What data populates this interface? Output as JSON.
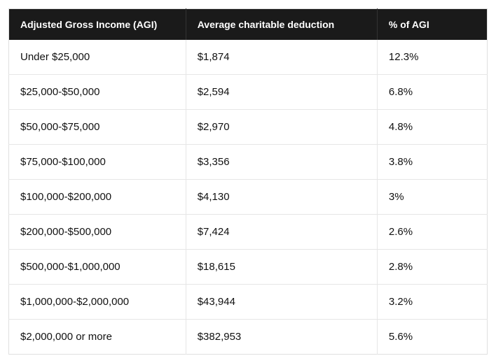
{
  "table": {
    "type": "table",
    "header_bg": "#1a1a1a",
    "header_text_color": "#ffffff",
    "header_fontsize": 14,
    "header_fontweight": 700,
    "body_fontsize": 15,
    "body_text_color": "#111111",
    "border_color": "#e6e6e6",
    "background_color": "#ffffff",
    "columns": [
      {
        "label": "Adjusted Gross Income (AGI)",
        "width": "37%",
        "align": "left"
      },
      {
        "label": "Average charitable deduction",
        "width": "40%",
        "align": "left"
      },
      {
        "label": "% of AGI",
        "width": "23%",
        "align": "left"
      }
    ],
    "rows": [
      [
        "Under $25,000",
        "$1,874",
        "12.3%"
      ],
      [
        "$25,000-$50,000",
        "$2,594",
        "6.8%"
      ],
      [
        "$50,000-$75,000",
        "$2,970",
        "4.8%"
      ],
      [
        "$75,000-$100,000",
        "$3,356",
        "3.8%"
      ],
      [
        "$100,000-$200,000",
        "$4,130",
        "3%"
      ],
      [
        "$200,000-$500,000",
        "$7,424",
        "2.6%"
      ],
      [
        "$500,000-$1,000,000",
        "$18,615",
        "2.8%"
      ],
      [
        "$1,000,000-$2,000,000",
        "$43,944",
        "3.2%"
      ],
      [
        "$2,000,000 or more",
        "$382,953",
        "5.6%"
      ]
    ]
  }
}
